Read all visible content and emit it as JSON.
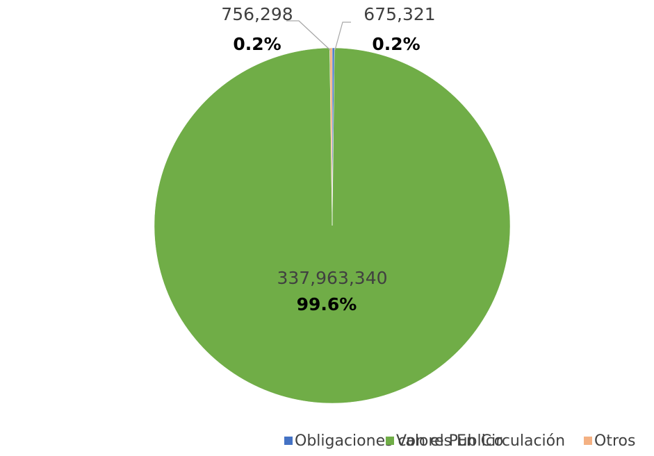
{
  "chart_data": {
    "type": "pie",
    "categories": [
      "Obligaciones con el Publico",
      "Valores En Circulación",
      "Otros"
    ],
    "values": [
      675321,
      337963340,
      756298
    ],
    "value_labels": [
      "675,321",
      "337,963,340",
      "756,298"
    ],
    "percent_labels": [
      "0.2%",
      "99.6%",
      "0.2%"
    ],
    "colors": [
      "#4472c4",
      "#70ad47",
      "#f4b183"
    ],
    "legend": "bottom"
  }
}
